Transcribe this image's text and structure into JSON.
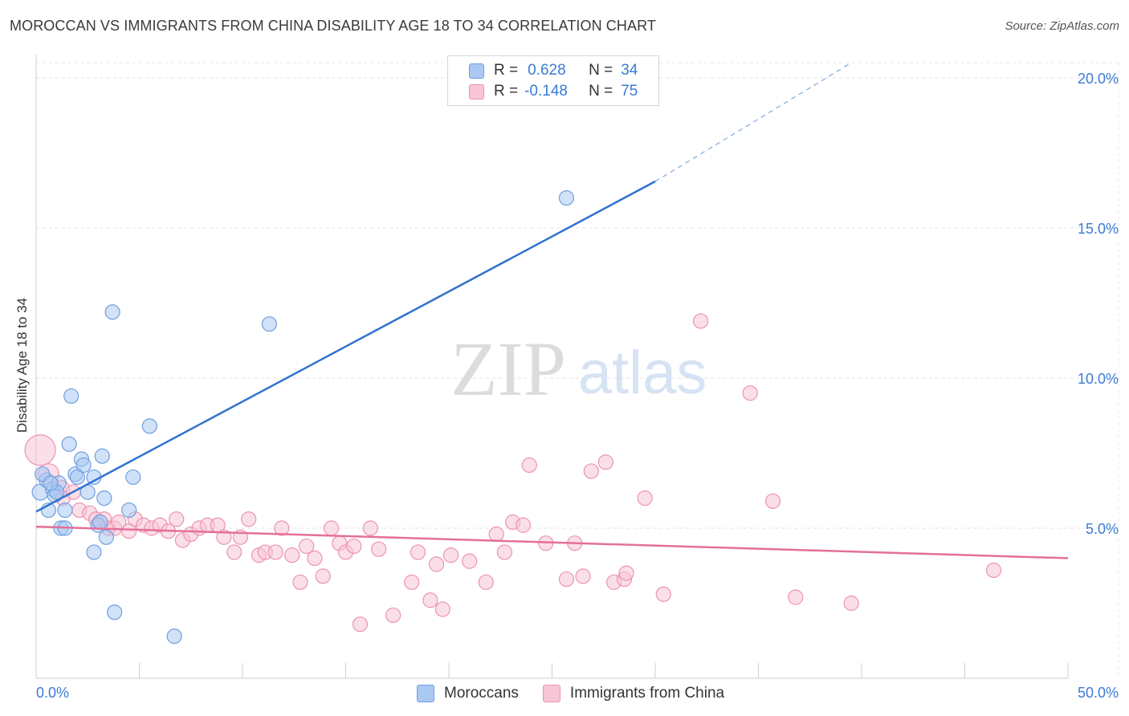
{
  "header": {
    "title": "MOROCCAN VS IMMIGRANTS FROM CHINA DISABILITY AGE 18 TO 34 CORRELATION CHART",
    "source": "Source: ZipAtlas.com"
  },
  "watermark": {
    "zip": "ZIP",
    "atlas": "atlas"
  },
  "legend": {
    "rows": [
      {
        "r_label": "R =",
        "r_value": "0.628",
        "n_label": "N =",
        "n_value": "34",
        "color": "#a9c8f2",
        "border": "#6fa0e0"
      },
      {
        "r_label": "R =",
        "r_value": "-0.148",
        "n_label": "N =",
        "n_value": "75",
        "color": "#f8c5d6",
        "border": "#ec93b2"
      }
    ]
  },
  "bottom_legend": [
    {
      "label": "Moroccans",
      "color": "#a9c8f2",
      "border": "#6fa0e0"
    },
    {
      "label": "Immigrants from China",
      "color": "#f8c5d6",
      "border": "#ec93b2"
    }
  ],
  "chart_data": {
    "type": "scatter",
    "xlabel": "",
    "ylabel": "Disability Age 18 to 34",
    "xlim": [
      0,
      50
    ],
    "ylim": [
      0,
      20
    ],
    "x_tick_labels": [
      "0.0%",
      "50.0%"
    ],
    "y_ticks": [
      5,
      10,
      15,
      20
    ],
    "y_tick_labels": [
      "5.0%",
      "10.0%",
      "15.0%",
      "20.0%"
    ],
    "grid": "horizontal dashed",
    "legend_position": "top-center",
    "series": [
      {
        "name": "Moroccans",
        "color": "#6fa0e0",
        "fill": "#a9c8f2",
        "trend": {
          "x0": 0,
          "y0": 5.55,
          "x1": 30,
          "y1": 16.55,
          "dashed_to_x": 39.5,
          "dashed_to_y": 20.5,
          "line_color": "#2f72cf"
        },
        "points": [
          {
            "x": 0.2,
            "y": 6.2,
            "r": 10
          },
          {
            "x": 0.5,
            "y": 6.6,
            "r": 9
          },
          {
            "x": 0.6,
            "y": 5.6,
            "r": 9
          },
          {
            "x": 0.8,
            "y": 6.3,
            "r": 9
          },
          {
            "x": 0.9,
            "y": 6.1,
            "r": 9
          },
          {
            "x": 1.1,
            "y": 6.5,
            "r": 9
          },
          {
            "x": 1.2,
            "y": 5.0,
            "r": 9
          },
          {
            "x": 1.4,
            "y": 5.6,
            "r": 9
          },
          {
            "x": 1.4,
            "y": 5.0,
            "r": 9
          },
          {
            "x": 1.6,
            "y": 7.8,
            "r": 9
          },
          {
            "x": 1.7,
            "y": 9.4,
            "r": 9
          },
          {
            "x": 1.9,
            "y": 6.8,
            "r": 9
          },
          {
            "x": 2.0,
            "y": 6.7,
            "r": 9
          },
          {
            "x": 2.2,
            "y": 7.3,
            "r": 9
          },
          {
            "x": 2.3,
            "y": 7.1,
            "r": 9
          },
          {
            "x": 2.5,
            "y": 6.2,
            "r": 9
          },
          {
            "x": 2.8,
            "y": 6.7,
            "r": 9
          },
          {
            "x": 2.8,
            "y": 4.2,
            "r": 9
          },
          {
            "x": 3.0,
            "y": 5.1,
            "r": 9
          },
          {
            "x": 3.2,
            "y": 7.4,
            "r": 9
          },
          {
            "x": 3.3,
            "y": 6.0,
            "r": 9
          },
          {
            "x": 3.4,
            "y": 4.7,
            "r": 9
          },
          {
            "x": 3.7,
            "y": 12.2,
            "r": 9
          },
          {
            "x": 3.8,
            "y": 2.2,
            "r": 9
          },
          {
            "x": 4.5,
            "y": 5.6,
            "r": 9
          },
          {
            "x": 4.7,
            "y": 6.7,
            "r": 9
          },
          {
            "x": 5.5,
            "y": 8.4,
            "r": 9
          },
          {
            "x": 6.7,
            "y": 1.4,
            "r": 9
          },
          {
            "x": 11.3,
            "y": 11.8,
            "r": 9
          },
          {
            "x": 25.7,
            "y": 16.0,
            "r": 9
          },
          {
            "x": 0.3,
            "y": 6.8,
            "r": 9
          },
          {
            "x": 1.0,
            "y": 6.2,
            "r": 9
          },
          {
            "x": 3.1,
            "y": 5.2,
            "r": 9
          },
          {
            "x": 0.7,
            "y": 6.5,
            "r": 9
          }
        ]
      },
      {
        "name": "Immigrants from China",
        "color": "#ec93b2",
        "fill": "#f8c5d6",
        "trend": {
          "x0": 0,
          "y0": 5.05,
          "x1": 50,
          "y1": 4.0,
          "line_color": "#e46f9b"
        },
        "points": [
          {
            "x": 0.2,
            "y": 7.6,
            "r": 19
          },
          {
            "x": 0.6,
            "y": 6.8,
            "r": 13
          },
          {
            "x": 1.2,
            "y": 6.3,
            "r": 11
          },
          {
            "x": 1.3,
            "y": 6.0,
            "r": 9
          },
          {
            "x": 1.8,
            "y": 6.2,
            "r": 9
          },
          {
            "x": 2.1,
            "y": 5.6,
            "r": 9
          },
          {
            "x": 2.6,
            "y": 5.5,
            "r": 9
          },
          {
            "x": 2.9,
            "y": 5.3,
            "r": 9
          },
          {
            "x": 3.3,
            "y": 5.3,
            "r": 9
          },
          {
            "x": 3.5,
            "y": 5.0,
            "r": 9
          },
          {
            "x": 3.8,
            "y": 5.0,
            "r": 9
          },
          {
            "x": 4.0,
            "y": 5.2,
            "r": 9
          },
          {
            "x": 4.5,
            "y": 4.9,
            "r": 9
          },
          {
            "x": 4.8,
            "y": 5.3,
            "r": 9
          },
          {
            "x": 5.2,
            "y": 5.1,
            "r": 9
          },
          {
            "x": 5.6,
            "y": 5.0,
            "r": 9
          },
          {
            "x": 6.0,
            "y": 5.1,
            "r": 9
          },
          {
            "x": 6.4,
            "y": 4.9,
            "r": 9
          },
          {
            "x": 6.8,
            "y": 5.3,
            "r": 9
          },
          {
            "x": 7.1,
            "y": 4.6,
            "r": 9
          },
          {
            "x": 7.5,
            "y": 4.8,
            "r": 9
          },
          {
            "x": 7.9,
            "y": 5.0,
            "r": 9
          },
          {
            "x": 8.3,
            "y": 5.1,
            "r": 9
          },
          {
            "x": 8.8,
            "y": 5.1,
            "r": 9
          },
          {
            "x": 9.1,
            "y": 4.7,
            "r": 9
          },
          {
            "x": 9.6,
            "y": 4.2,
            "r": 9
          },
          {
            "x": 9.9,
            "y": 4.7,
            "r": 9
          },
          {
            "x": 10.3,
            "y": 5.3,
            "r": 9
          },
          {
            "x": 10.8,
            "y": 4.1,
            "r": 9
          },
          {
            "x": 11.1,
            "y": 4.2,
            "r": 9
          },
          {
            "x": 11.6,
            "y": 4.2,
            "r": 9
          },
          {
            "x": 11.9,
            "y": 5.0,
            "r": 9
          },
          {
            "x": 12.4,
            "y": 4.1,
            "r": 9
          },
          {
            "x": 12.8,
            "y": 3.2,
            "r": 9
          },
          {
            "x": 13.1,
            "y": 4.4,
            "r": 9
          },
          {
            "x": 13.5,
            "y": 4.0,
            "r": 9
          },
          {
            "x": 13.9,
            "y": 3.4,
            "r": 9
          },
          {
            "x": 14.3,
            "y": 5.0,
            "r": 9
          },
          {
            "x": 14.7,
            "y": 4.5,
            "r": 9
          },
          {
            "x": 15.0,
            "y": 4.2,
            "r": 9
          },
          {
            "x": 15.4,
            "y": 4.4,
            "r": 9
          },
          {
            "x": 15.7,
            "y": 1.8,
            "r": 9
          },
          {
            "x": 16.2,
            "y": 5.0,
            "r": 9
          },
          {
            "x": 16.6,
            "y": 4.3,
            "r": 9
          },
          {
            "x": 17.3,
            "y": 2.1,
            "r": 9
          },
          {
            "x": 18.2,
            "y": 3.2,
            "r": 9
          },
          {
            "x": 18.5,
            "y": 4.2,
            "r": 9
          },
          {
            "x": 19.1,
            "y": 2.6,
            "r": 9
          },
          {
            "x": 19.4,
            "y": 3.8,
            "r": 9
          },
          {
            "x": 19.7,
            "y": 2.3,
            "r": 9
          },
          {
            "x": 20.1,
            "y": 4.1,
            "r": 9
          },
          {
            "x": 21.0,
            "y": 3.9,
            "r": 9
          },
          {
            "x": 21.8,
            "y": 3.2,
            "r": 9
          },
          {
            "x": 22.3,
            "y": 4.8,
            "r": 9
          },
          {
            "x": 22.7,
            "y": 4.2,
            "r": 9
          },
          {
            "x": 23.1,
            "y": 5.2,
            "r": 9
          },
          {
            "x": 23.6,
            "y": 5.1,
            "r": 9
          },
          {
            "x": 23.9,
            "y": 7.1,
            "r": 9
          },
          {
            "x": 24.7,
            "y": 4.5,
            "r": 9
          },
          {
            "x": 25.7,
            "y": 3.3,
            "r": 9
          },
          {
            "x": 26.1,
            "y": 4.5,
            "r": 9
          },
          {
            "x": 26.5,
            "y": 3.4,
            "r": 9
          },
          {
            "x": 26.9,
            "y": 6.9,
            "r": 9
          },
          {
            "x": 27.6,
            "y": 7.2,
            "r": 9
          },
          {
            "x": 28.0,
            "y": 3.2,
            "r": 9
          },
          {
            "x": 28.5,
            "y": 3.3,
            "r": 9
          },
          {
            "x": 28.6,
            "y": 3.5,
            "r": 9
          },
          {
            "x": 29.5,
            "y": 6.0,
            "r": 9
          },
          {
            "x": 30.4,
            "y": 2.8,
            "r": 9
          },
          {
            "x": 32.2,
            "y": 11.9,
            "r": 9
          },
          {
            "x": 34.6,
            "y": 9.5,
            "r": 9
          },
          {
            "x": 35.7,
            "y": 5.9,
            "r": 9
          },
          {
            "x": 36.8,
            "y": 2.7,
            "r": 9
          },
          {
            "x": 39.5,
            "y": 2.5,
            "r": 9
          },
          {
            "x": 46.4,
            "y": 3.6,
            "r": 9
          }
        ]
      }
    ]
  }
}
